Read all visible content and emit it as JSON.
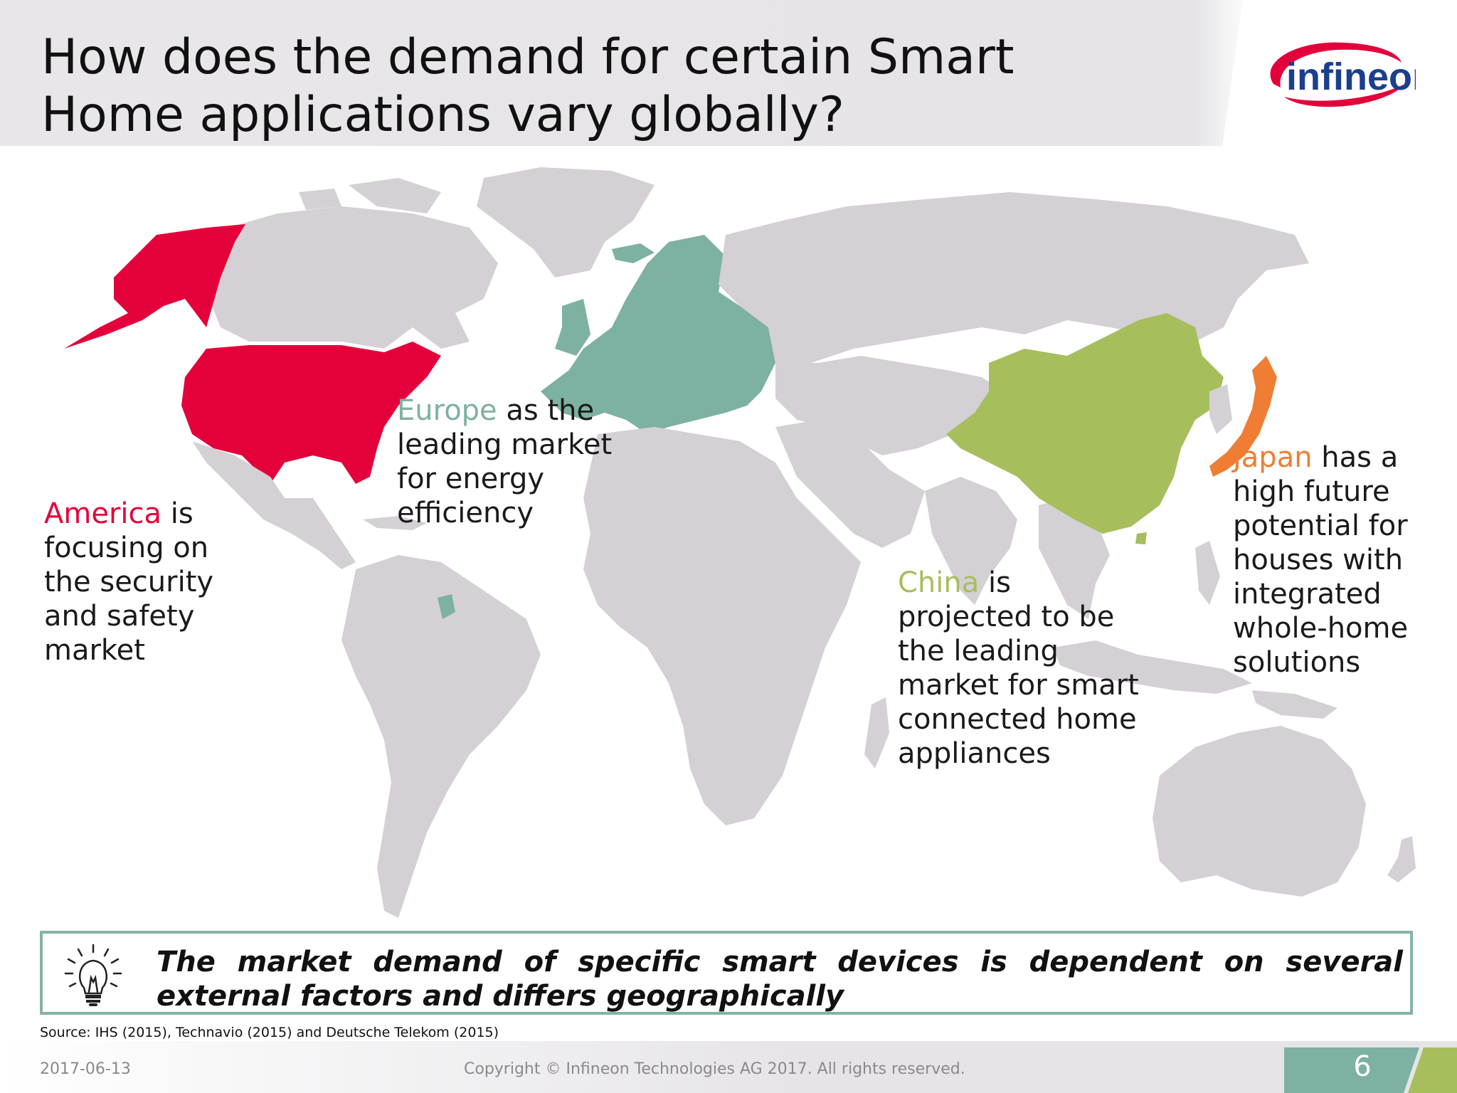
{
  "title_line1": "How does the demand for certain Smart",
  "title_line2": "Home applications vary globally?",
  "logo_text": "infineon",
  "callouts": {
    "america": {
      "highlight": "America",
      "rest_line1": " is",
      "line2": "focusing on",
      "line3": "the security",
      "line4": "and safety",
      "line5": "market"
    },
    "europe": {
      "highlight": "Europe",
      "rest_line1": " as the",
      "line2": "leading market",
      "line3": "for energy",
      "line4": "efficiency"
    },
    "china": {
      "highlight": "China",
      "rest_line1": " is",
      "line2": "projected to be",
      "line3": "the leading",
      "line4": "market for smart",
      "line5": "connected home",
      "line6": "appliances"
    },
    "japan": {
      "highlight": "Japan",
      "rest_line1": " has a",
      "line2": "high future",
      "line3": "potential for",
      "line4": "houses with",
      "line5": "integrated",
      "line6": "whole-home",
      "line7": "solutions"
    }
  },
  "statement": "The market demand of specific smart devices is dependent on several external factors and differs geographically",
  "source": "Source: IHS (2015), Technavio (2015) and Deutsche Telekom (2015)",
  "footer": {
    "date": "2017-06-13",
    "copyright": "Copyright © Infineon Technologies AG 2017. All rights reserved.",
    "page_number": "6"
  },
  "colors": {
    "america": "#e4003a",
    "europe": "#7db1a1",
    "china": "#a7be5c",
    "japan": "#ef7d33",
    "land": "#d4d0d5",
    "accent_border": "#86b3a3"
  }
}
